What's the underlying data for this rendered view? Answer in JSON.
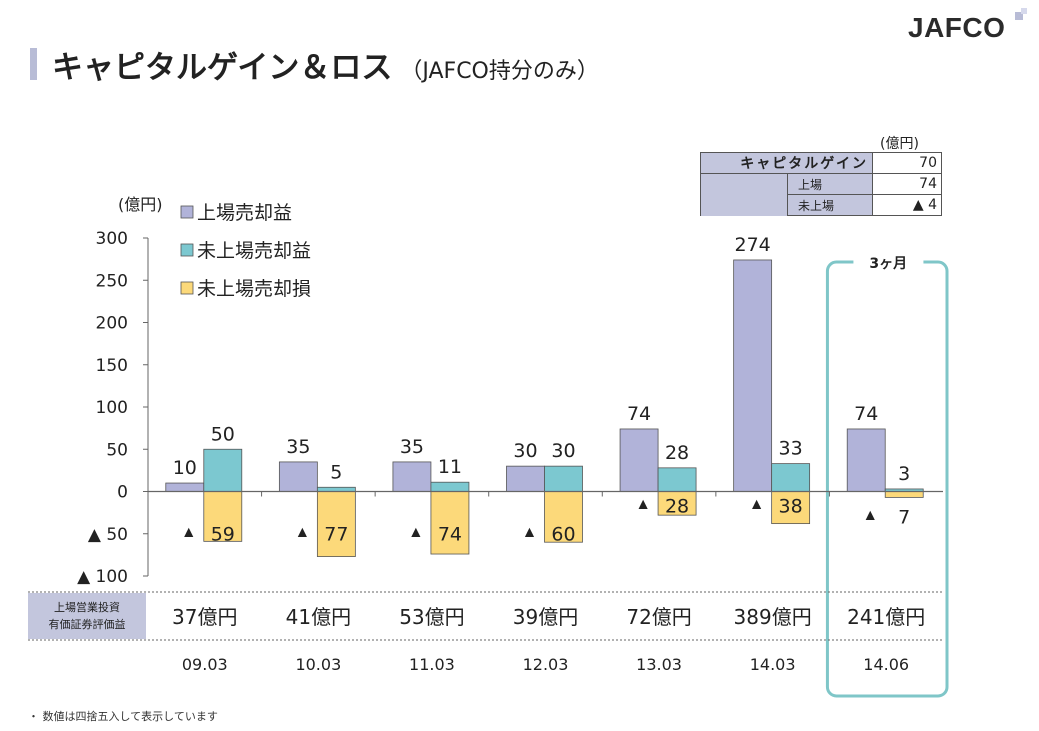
{
  "header": {
    "title": "キャピタルゲイン＆ロス",
    "subtitle": "（JAFCO持分のみ）",
    "logo": "JAFCO"
  },
  "summary_table": {
    "unit": "(億円)",
    "rows": [
      {
        "label": "キャピタルゲイン",
        "value": "70"
      },
      {
        "label": "上場",
        "value": "74"
      },
      {
        "label": "未上場",
        "value": "▲ 4"
      }
    ]
  },
  "chart_data": {
    "type": "bar",
    "ylabel": "(億円)",
    "ylim": [
      -100,
      300
    ],
    "yticks": [
      300,
      250,
      200,
      150,
      100,
      50,
      0,
      -50,
      -100
    ],
    "ytick_labels": [
      "300",
      "250",
      "200",
      "150",
      "100",
      "50",
      "0",
      "▲ 50",
      "▲ 100"
    ],
    "categories": [
      "09.03",
      "10.03",
      "11.03",
      "12.03",
      "13.03",
      "14.03",
      "14.06"
    ],
    "series": [
      {
        "name": "上場売却益",
        "color": "#b1b3d9",
        "values": [
          10,
          35,
          35,
          30,
          74,
          274,
          74
        ],
        "labels": [
          "10",
          "35",
          "35",
          "30",
          "74",
          "274",
          "74"
        ]
      },
      {
        "name": "未上場売却益",
        "color": "#7cc8d0",
        "values": [
          50,
          5,
          11,
          30,
          28,
          33,
          3
        ],
        "labels": [
          "50",
          "5",
          "11",
          "30",
          "28",
          "33",
          "3"
        ]
      },
      {
        "name": "未上場売却損",
        "color": "#fcd97a",
        "values": [
          -59,
          -77,
          -74,
          -60,
          -28,
          -38,
          -7
        ],
        "labels": [
          "59",
          "77",
          "74",
          "60",
          "28",
          "38",
          "7"
        ]
      }
    ],
    "legend_position": "top-left",
    "row_header": "上場営業投資\n有価証券評価益",
    "row_values": [
      "37億円",
      "41億円",
      "53億円",
      "39億円",
      "72億円",
      "389億円",
      "241億円"
    ],
    "highlight": {
      "label": "3ヶ月",
      "category": "14.06",
      "color": "#7fc6c8"
    }
  },
  "footnote": "・ 数値は四捨五入して表示しています"
}
